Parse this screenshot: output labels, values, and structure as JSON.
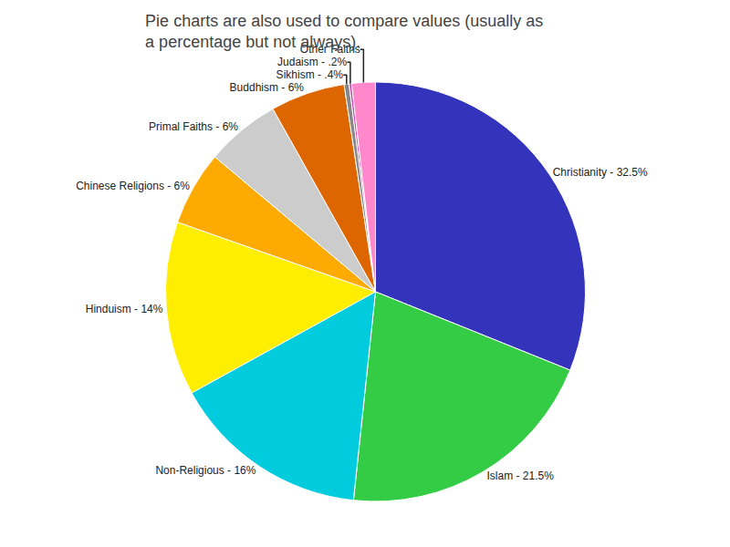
{
  "chart_data": {
    "type": "pie",
    "title": "Pie charts are also used to compare values (usually as\na percentage but not always).",
    "categories": [
      "Christianity - 32.5%",
      "Islam - 21.5%",
      "Non-Religious - 16%",
      "Hinduism - 14%",
      "Chinese Religions - 6%",
      "Primal Faiths - 6%",
      "Buddhism - 6%",
      "Sikhism - .4%",
      "Judaism - .2%",
      "Other Faiths"
    ],
    "values": [
      32.5,
      21.5,
      16.0,
      14.0,
      6.0,
      6.0,
      6.0,
      0.4,
      0.2,
      1.9
    ],
    "colors": [
      "#3333bb",
      "#33cc44",
      "#00ccdd",
      "#ffee00",
      "#ffaa00",
      "#cccccc",
      "#dd6600",
      "#888888",
      "#cc44aa",
      "#ff88cc"
    ]
  }
}
